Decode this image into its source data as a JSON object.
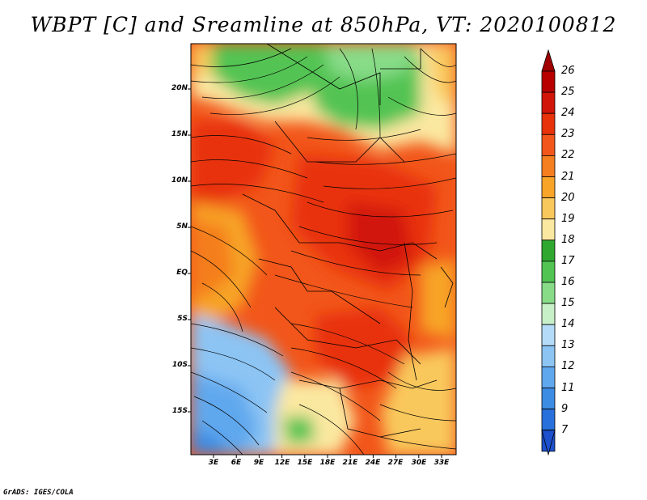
{
  "title": "WBPT [C] and Sreamline at 850hPa, VT: 2020100812",
  "map": {
    "lat_ticks": [
      "20N",
      "15N",
      "10N",
      "5N",
      "EQ",
      "5S",
      "10S",
      "15S"
    ],
    "lon_ticks": [
      "3E",
      "6E",
      "9E",
      "12E",
      "15E",
      "18E",
      "21E",
      "24E",
      "27E",
      "30E",
      "33E"
    ]
  },
  "colorbar": {
    "labels": [
      "26",
      "25",
      "24",
      "23",
      "22",
      "21",
      "20",
      "19",
      "18",
      "17",
      "16",
      "15",
      "14",
      "13",
      "12",
      "11",
      "9",
      "7"
    ],
    "colors": [
      "#b80000",
      "#d11508",
      "#e8320a",
      "#f2561a",
      "#f57e1e",
      "#f7a428",
      "#f9c85c",
      "#fbe8a0",
      "#30a830",
      "#52c452",
      "#88dc88",
      "#c8f0c8",
      "#b4dcf8",
      "#8cc4f4",
      "#60a8ee",
      "#3c8ce4",
      "#2870dc",
      "#1c50cc"
    ]
  },
  "credit": "GrADS: IGES/COLA"
}
